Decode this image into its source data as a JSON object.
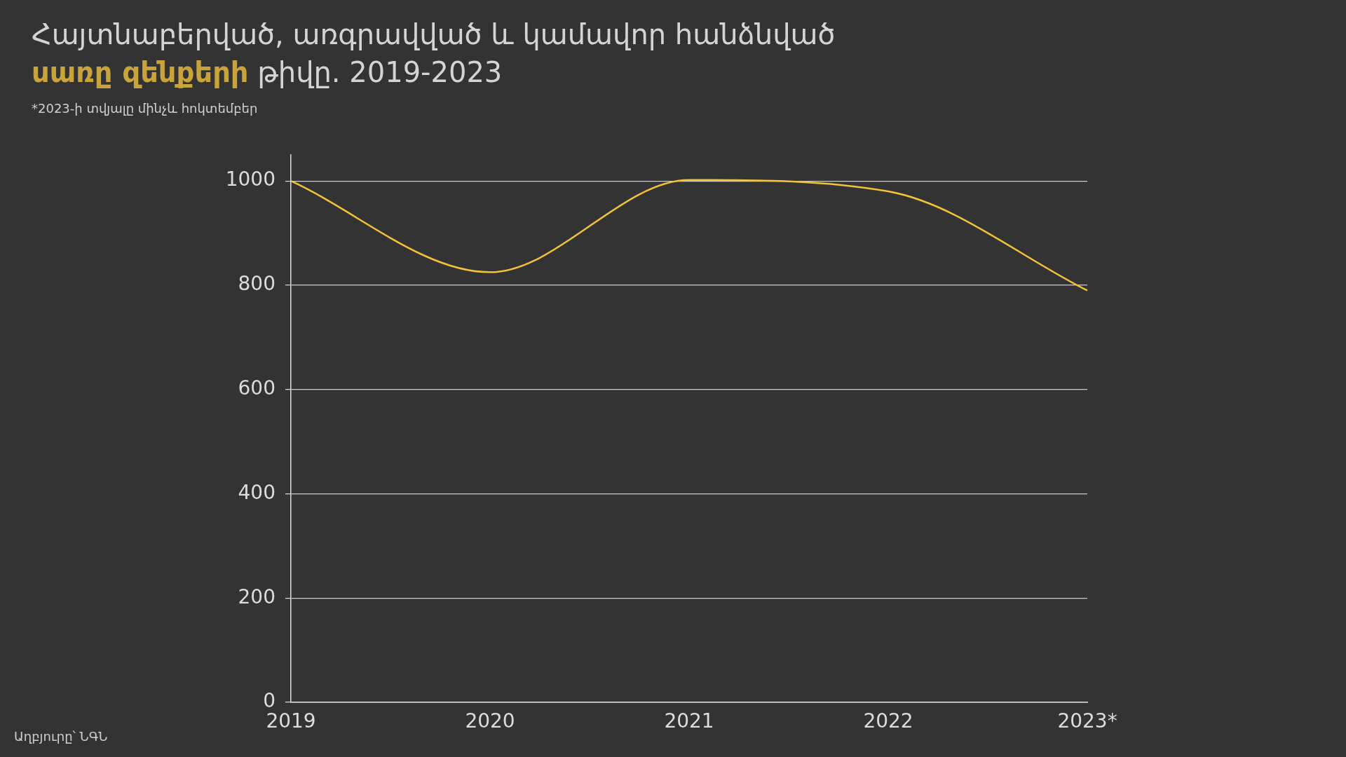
{
  "chart_data": {
    "type": "line",
    "title": "Հայտնաբերված, առգրավված և կամավոր հանձնված\nսառը զենքերի թիվը. 2019-2023",
    "subtitle": "*2023-ի տվյալը մինչև հոկտեմբեր",
    "annotations": [
      "Աղբյուրը՝ ՆԳՆ"
    ],
    "categories": [
      "2019",
      "2020",
      "2021",
      "2022",
      "2023*"
    ],
    "series": [
      {
        "color": "#f2c23a",
        "values": [
          1000,
          825,
          1002,
          980,
          790
        ]
      }
    ],
    "ylim": [
      0,
      1050
    ],
    "yticks": [
      0,
      200,
      400,
      600,
      800,
      1000
    ],
    "grid": "y",
    "legend": false,
    "marker": "none",
    "line_style": "solid"
  }
}
